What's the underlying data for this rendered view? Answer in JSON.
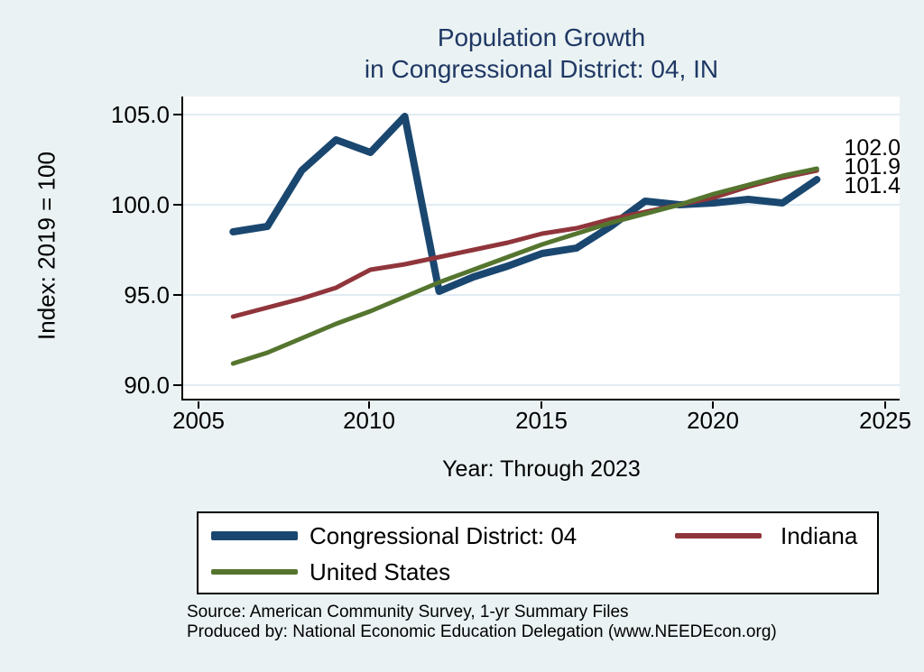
{
  "title": {
    "line1": "Population Growth",
    "line2": "in Congressional District: 04, IN"
  },
  "y_axis": {
    "title": "Index: 2019 = 100",
    "ticks": [
      "105.0",
      "100.0",
      "95.0",
      "90.0"
    ]
  },
  "x_axis": {
    "title": "Year: Through 2023",
    "ticks": [
      "2005",
      "2010",
      "2015",
      "2020",
      "2025"
    ]
  },
  "end_labels": {
    "united_states": "102.0",
    "indiana": "101.9",
    "district": "101.4"
  },
  "legend": {
    "items": [
      {
        "label": "Congressional District: 04",
        "color": "#1a476f"
      },
      {
        "label": "Indiana",
        "color": "#90353b"
      },
      {
        "label": "United States",
        "color": "#55752f"
      }
    ]
  },
  "footer": {
    "source": "Source: American Community Survey, 1-yr Summary Files",
    "produced_by": "Produced by: National Economic Education Delegation (www.NEEDEcon.org)"
  },
  "colors": {
    "background": "#eaf2f3",
    "plot_background": "#ffffff",
    "gridline": "#e1ecf3",
    "axis": "#000000",
    "title_text": "#1f3864",
    "district": "#1a476f",
    "indiana": "#90353b",
    "united_states": "#55752f"
  },
  "chart_data": {
    "type": "line",
    "title": "Population Growth in Congressional District: 04, IN",
    "xlabel": "Year: Through 2023",
    "ylabel": "Index: 2019 = 100",
    "x": [
      2006,
      2007,
      2008,
      2009,
      2010,
      2011,
      2012,
      2013,
      2014,
      2015,
      2016,
      2017,
      2018,
      2019,
      2020,
      2021,
      2022,
      2023
    ],
    "series": [
      {
        "name": "Congressional District: 04",
        "id": "congressional-district-04",
        "color": "#1a476f",
        "values": [
          98.5,
          98.8,
          101.9,
          103.6,
          102.9,
          104.9,
          95.2,
          96.0,
          96.6,
          97.3,
          97.6,
          98.8,
          100.2,
          100.0,
          100.1,
          100.3,
          100.1,
          101.4
        ]
      },
      {
        "name": "Indiana",
        "id": "indiana",
        "color": "#90353b",
        "values": [
          93.8,
          94.3,
          94.8,
          95.4,
          96.4,
          96.7,
          97.1,
          97.5,
          97.9,
          98.4,
          98.7,
          99.2,
          99.6,
          100.0,
          100.4,
          101.0,
          101.5,
          101.9
        ]
      },
      {
        "name": "United States",
        "id": "united-states",
        "color": "#55752f",
        "values": [
          91.2,
          91.8,
          92.6,
          93.4,
          94.1,
          94.9,
          95.7,
          96.4,
          97.1,
          97.8,
          98.4,
          99.0,
          99.5,
          100.0,
          100.6,
          101.1,
          101.6,
          102.0
        ]
      }
    ],
    "xlim": [
      2004.5,
      2025.4
    ],
    "ylim": [
      89.2,
      106.0
    ],
    "x_ticks": [
      2005,
      2010,
      2015,
      2020,
      2025
    ],
    "y_ticks": [
      90,
      95,
      100,
      105
    ],
    "grid": "horizontal",
    "legend_position": "bottom",
    "end_point_labels": {
      "congressional-district-04": 101.4,
      "indiana": 101.9,
      "united-states": 102.0
    }
  }
}
